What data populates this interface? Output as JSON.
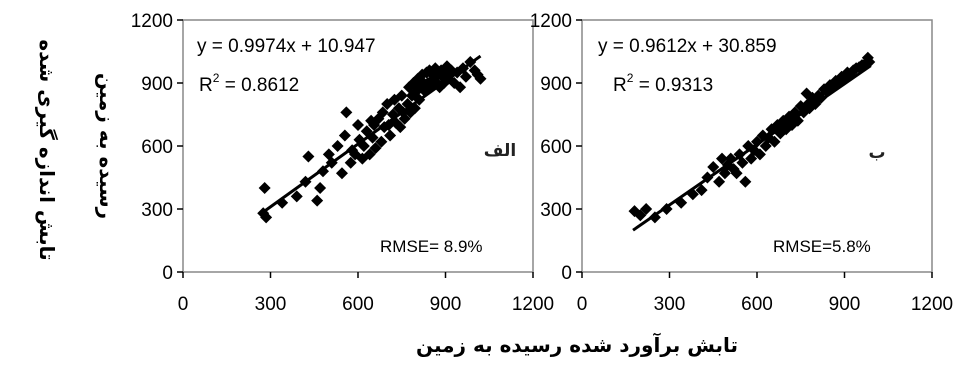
{
  "chart_data": [
    {
      "type": "scatter",
      "panel_label": "الف",
      "equation": "y = 0.9974x + 10.947",
      "r2_label": "R",
      "r2_sup": "2",
      "r2_value": " = 0.8612",
      "rmse": "RMSE= 8.9%",
      "xlim": [
        0,
        1200
      ],
      "ylim": [
        0,
        1200
      ],
      "xticks": [
        "0",
        "300",
        "600",
        "900",
        "1200"
      ],
      "yticks": [
        "0",
        "300",
        "600",
        "900",
        "1200"
      ],
      "trendline": {
        "slope": 0.9974,
        "intercept": 10.947,
        "x_range": [
          270,
          1020
        ]
      },
      "series": [
        {
          "marker": "diamond",
          "points": [
            [
              275,
              280
            ],
            [
              280,
              400
            ],
            [
              285,
              260
            ],
            [
              340,
              330
            ],
            [
              390,
              360
            ],
            [
              420,
              430
            ],
            [
              430,
              550
            ],
            [
              460,
              340
            ],
            [
              470,
              400
            ],
            [
              480,
              480
            ],
            [
              500,
              560
            ],
            [
              510,
              520
            ],
            [
              530,
              600
            ],
            [
              545,
              470
            ],
            [
              555,
              650
            ],
            [
              560,
              760
            ],
            [
              575,
              520
            ],
            [
              580,
              580
            ],
            [
              590,
              560
            ],
            [
              600,
              700
            ],
            [
              605,
              630
            ],
            [
              615,
              540
            ],
            [
              620,
              600
            ],
            [
              630,
              670
            ],
            [
              640,
              560
            ],
            [
              645,
              720
            ],
            [
              650,
              640
            ],
            [
              655,
              700
            ],
            [
              660,
              590
            ],
            [
              670,
              730
            ],
            [
              680,
              620
            ],
            [
              685,
              760
            ],
            [
              690,
              690
            ],
            [
              700,
              800
            ],
            [
              705,
              700
            ],
            [
              710,
              650
            ],
            [
              720,
              750
            ],
            [
              725,
              820
            ],
            [
              730,
              710
            ],
            [
              740,
              780
            ],
            [
              745,
              690
            ],
            [
              750,
              840
            ],
            [
              755,
              760
            ],
            [
              760,
              730
            ],
            [
              770,
              800
            ],
            [
              775,
              880
            ],
            [
              780,
              760
            ],
            [
              785,
              840
            ],
            [
              790,
              900
            ],
            [
              795,
              780
            ],
            [
              800,
              860
            ],
            [
              805,
              920
            ],
            [
              810,
              820
            ],
            [
              815,
              880
            ],
            [
              820,
              940
            ],
            [
              825,
              900
            ],
            [
              830,
              860
            ],
            [
              835,
              950
            ],
            [
              840,
              900
            ],
            [
              845,
              960
            ],
            [
              850,
              880
            ],
            [
              855,
              940
            ],
            [
              860,
              920
            ],
            [
              865,
              970
            ],
            [
              870,
              900
            ],
            [
              875,
              950
            ],
            [
              880,
              880
            ],
            [
              885,
              960
            ],
            [
              890,
              930
            ],
            [
              895,
              900
            ],
            [
              900,
              950
            ],
            [
              905,
              980
            ],
            [
              910,
              920
            ],
            [
              920,
              960
            ],
            [
              930,
              900
            ],
            [
              940,
              950
            ],
            [
              950,
              880
            ],
            [
              960,
              970
            ],
            [
              970,
              930
            ],
            [
              985,
              1000
            ],
            [
              1000,
              960
            ],
            [
              1010,
              940
            ],
            [
              1020,
              920
            ]
          ]
        }
      ]
    },
    {
      "type": "scatter",
      "panel_label": "ب",
      "equation": "y = 0.9612x + 30.859",
      "r2_label": "R",
      "r2_sup": "2",
      "r2_value": " = 0.9313",
      "rmse": "RMSE=5.8%",
      "xlim": [
        0,
        1200
      ],
      "ylim": [
        0,
        1200
      ],
      "xticks": [
        "0",
        "300",
        "600",
        "900",
        "1200"
      ],
      "yticks": [
        "0",
        "300",
        "600",
        "900",
        "1200"
      ],
      "trendline": {
        "slope": 0.9612,
        "intercept": 30.859,
        "x_range": [
          175,
          990
        ]
      },
      "series": [
        {
          "marker": "diamond",
          "points": [
            [
              180,
              290
            ],
            [
              200,
              270
            ],
            [
              220,
              300
            ],
            [
              250,
              260
            ],
            [
              290,
              300
            ],
            [
              340,
              330
            ],
            [
              380,
              370
            ],
            [
              410,
              390
            ],
            [
              430,
              450
            ],
            [
              450,
              500
            ],
            [
              470,
              430
            ],
            [
              480,
              540
            ],
            [
              490,
              470
            ],
            [
              500,
              510
            ],
            [
              510,
              540
            ],
            [
              520,
              490
            ],
            [
              530,
              470
            ],
            [
              540,
              560
            ],
            [
              550,
              520
            ],
            [
              560,
              430
            ],
            [
              570,
              600
            ],
            [
              580,
              540
            ],
            [
              590,
              580
            ],
            [
              600,
              620
            ],
            [
              610,
              560
            ],
            [
              620,
              650
            ],
            [
              630,
              600
            ],
            [
              640,
              640
            ],
            [
              650,
              680
            ],
            [
              660,
              620
            ],
            [
              670,
              700
            ],
            [
              680,
              660
            ],
            [
              690,
              720
            ],
            [
              700,
              680
            ],
            [
              710,
              740
            ],
            [
              720,
              700
            ],
            [
              730,
              760
            ],
            [
              740,
              720
            ],
            [
              750,
              790
            ],
            [
              760,
              760
            ],
            [
              770,
              850
            ],
            [
              775,
              800
            ],
            [
              780,
              780
            ],
            [
              790,
              830
            ],
            [
              800,
              800
            ],
            [
              810,
              840
            ],
            [
              820,
              830
            ],
            [
              830,
              870
            ],
            [
              840,
              860
            ],
            [
              850,
              890
            ],
            [
              860,
              880
            ],
            [
              870,
              910
            ],
            [
              880,
              900
            ],
            [
              890,
              930
            ],
            [
              900,
              920
            ],
            [
              910,
              950
            ],
            [
              920,
              940
            ],
            [
              930,
              960
            ],
            [
              940,
              970
            ],
            [
              950,
              975
            ],
            [
              960,
              985
            ],
            [
              970,
              990
            ],
            [
              980,
              1020
            ],
            [
              985,
              1000
            ]
          ]
        }
      ]
    }
  ],
  "axes": {
    "ylabel_outer": "تابش اندازه گیری شده",
    "ylabel_inner": "رسیده به زمین",
    "xlabel": "تابش برآورد شده  رسیده به زمین"
  }
}
